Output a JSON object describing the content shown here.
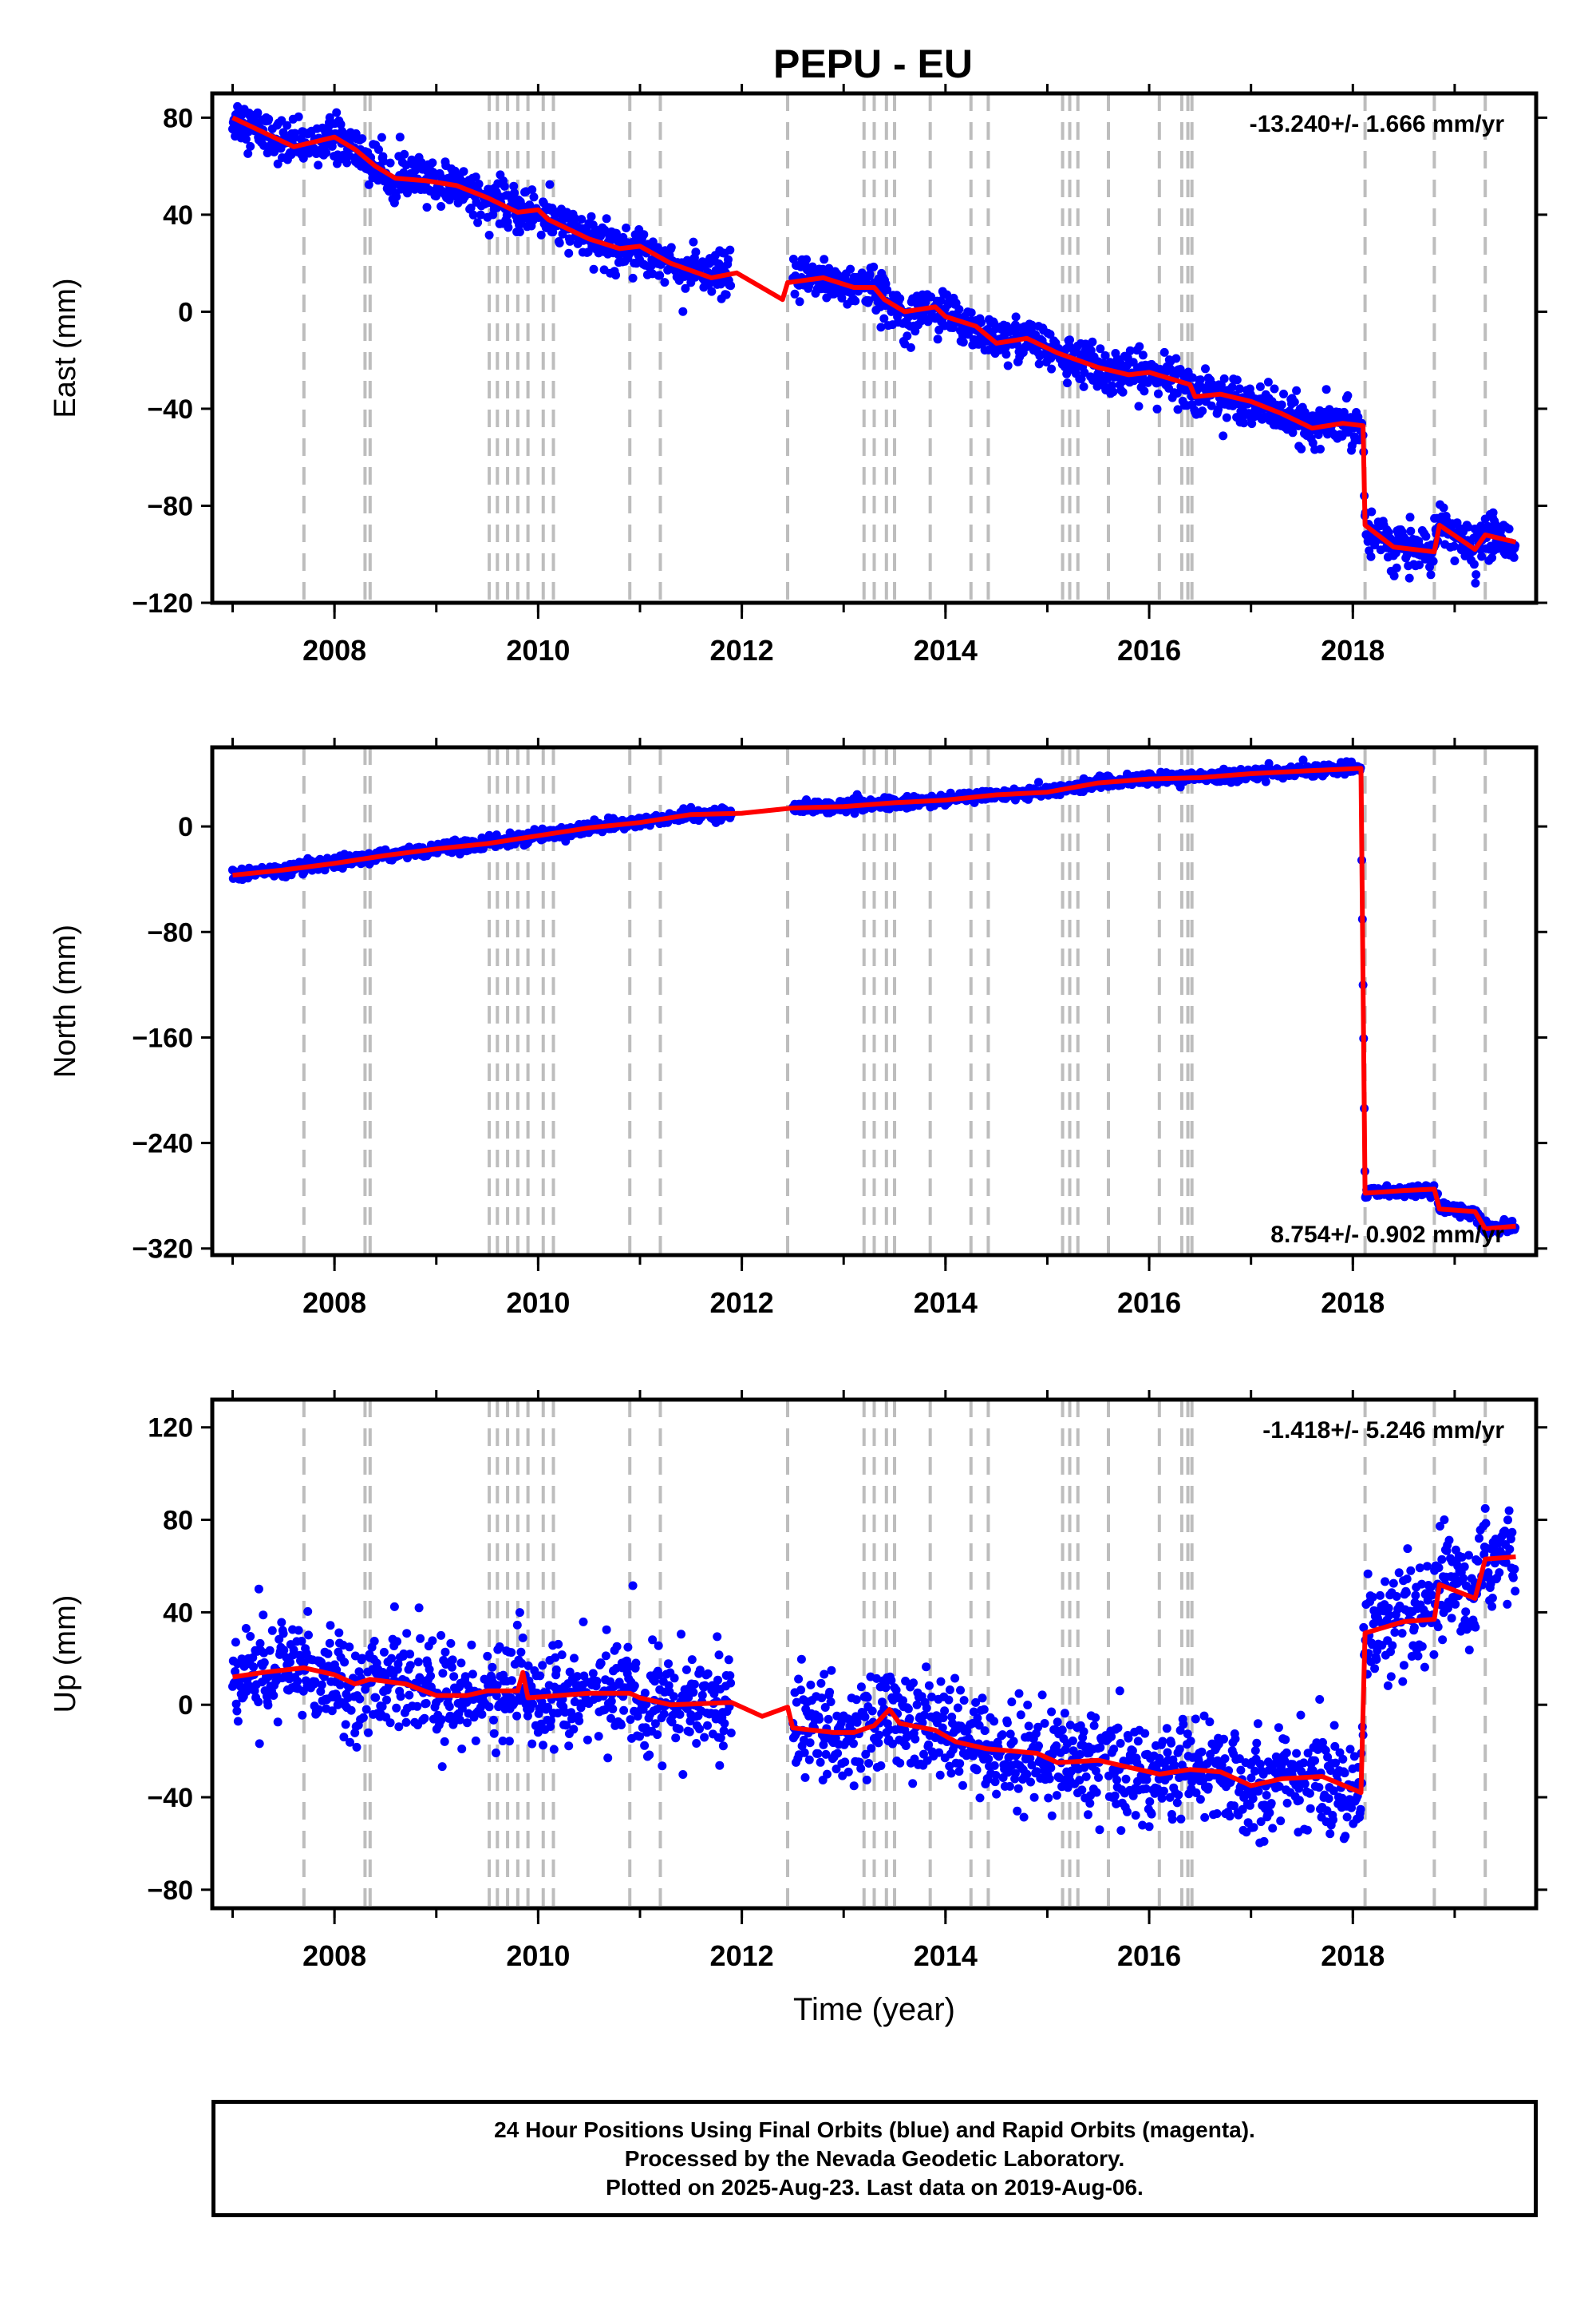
{
  "title": "PEPU - EU",
  "footer": {
    "line1": "24 Hour Positions Using Final Orbits (blue) and Rapid Orbits (magenta).",
    "line2": "Processed by the Nevada Geodetic Laboratory.",
    "line3": "Plotted on 2025-Aug-23. Last data on 2019-Aug-06."
  },
  "colors": {
    "points": "#0000ff",
    "model": "#ff0000",
    "steps": "#bdbdbd",
    "axis": "#000000"
  },
  "chart_data": [
    {
      "type": "scatter",
      "component": "east",
      "ylabel": "East (mm)",
      "xlabel": "",
      "rate_text": "-13.240+/- 1.666 mm/yr",
      "rate_position": "top-right",
      "xlim": [
        2006.8,
        2019.8
      ],
      "ylim": [
        -120,
        90
      ],
      "xticks": [
        2008,
        2010,
        2012,
        2014,
        2016,
        2018
      ],
      "yticks": [
        80,
        40,
        0,
        -40,
        -80,
        -120
      ],
      "data_gap": [
        2011.9,
        2012.5
      ],
      "noise": 4.5,
      "model": [
        [
          2007.0,
          80
        ],
        [
          2007.3,
          74
        ],
        [
          2007.6,
          68
        ],
        [
          2007.8,
          70
        ],
        [
          2008.0,
          72
        ],
        [
          2008.2,
          67
        ],
        [
          2008.4,
          60
        ],
        [
          2008.6,
          55
        ],
        [
          2008.9,
          54
        ],
        [
          2009.2,
          52
        ],
        [
          2009.5,
          47
        ],
        [
          2009.8,
          41
        ],
        [
          2010.0,
          42
        ],
        [
          2010.1,
          38
        ],
        [
          2010.5,
          30
        ],
        [
          2010.8,
          26
        ],
        [
          2011.0,
          27
        ],
        [
          2011.3,
          20
        ],
        [
          2011.7,
          14
        ],
        [
          2011.95,
          16
        ],
        [
          2012.4,
          5
        ],
        [
          2012.45,
          12
        ],
        [
          2012.8,
          14
        ],
        [
          2013.1,
          10
        ],
        [
          2013.3,
          10
        ],
        [
          2013.4,
          5
        ],
        [
          2013.6,
          0
        ],
        [
          2013.9,
          2
        ],
        [
          2014.0,
          -2
        ],
        [
          2014.3,
          -6
        ],
        [
          2014.5,
          -13
        ],
        [
          2014.8,
          -11
        ],
        [
          2015.1,
          -17
        ],
        [
          2015.5,
          -23
        ],
        [
          2015.8,
          -26
        ],
        [
          2016.0,
          -25
        ],
        [
          2016.4,
          -30
        ],
        [
          2016.45,
          -35
        ],
        [
          2016.7,
          -34
        ],
        [
          2017.0,
          -37
        ],
        [
          2017.3,
          -42
        ],
        [
          2017.6,
          -48
        ],
        [
          2017.9,
          -46
        ],
        [
          2018.1,
          -47
        ],
        [
          2018.12,
          -88
        ],
        [
          2018.4,
          -97
        ],
        [
          2018.8,
          -99
        ],
        [
          2018.85,
          -88
        ],
        [
          2019.2,
          -98
        ],
        [
          2019.3,
          -92
        ],
        [
          2019.6,
          -95
        ]
      ]
    },
    {
      "type": "scatter",
      "component": "north",
      "ylabel": "North (mm)",
      "xlabel": "",
      "rate_text": "8.754+/- 0.902 mm/yr",
      "rate_position": "bottom-right",
      "xlim": [
        2006.8,
        2019.8
      ],
      "ylim": [
        -325,
        60
      ],
      "xticks": [
        2008,
        2010,
        2012,
        2014,
        2016,
        2018
      ],
      "yticks": [
        0,
        -80,
        -160,
        -240,
        -320
      ],
      "data_gap": [
        2011.9,
        2012.5
      ],
      "noise": 2.2,
      "model": [
        [
          2007.0,
          -37
        ],
        [
          2007.5,
          -33
        ],
        [
          2008.0,
          -28
        ],
        [
          2008.5,
          -22
        ],
        [
          2009.0,
          -17
        ],
        [
          2009.5,
          -13
        ],
        [
          2010.0,
          -7
        ],
        [
          2010.5,
          -1
        ],
        [
          2011.0,
          3
        ],
        [
          2011.5,
          9
        ],
        [
          2012.0,
          10
        ],
        [
          2012.5,
          14
        ],
        [
          2013.0,
          15
        ],
        [
          2013.5,
          18
        ],
        [
          2014.0,
          20
        ],
        [
          2014.5,
          24
        ],
        [
          2015.0,
          26
        ],
        [
          2015.5,
          33
        ],
        [
          2016.0,
          36
        ],
        [
          2016.5,
          37
        ],
        [
          2017.0,
          40
        ],
        [
          2017.5,
          42
        ],
        [
          2018.08,
          44
        ],
        [
          2018.12,
          -278
        ],
        [
          2018.5,
          -276
        ],
        [
          2018.8,
          -275
        ],
        [
          2018.85,
          -290
        ],
        [
          2019.2,
          -292
        ],
        [
          2019.3,
          -305
        ],
        [
          2019.6,
          -303
        ]
      ]
    },
    {
      "type": "scatter",
      "component": "up",
      "ylabel": "Up (mm)",
      "xlabel": "Time (year)",
      "rate_text": "-1.418+/- 5.246 mm/yr",
      "rate_position": "top-right",
      "xlim": [
        2006.8,
        2019.8
      ],
      "ylim": [
        -88,
        132
      ],
      "xticks": [
        2008,
        2010,
        2012,
        2014,
        2016,
        2018
      ],
      "yticks": [
        120,
        80,
        40,
        0,
        -40,
        -80
      ],
      "data_gap": [
        2011.9,
        2012.5
      ],
      "noise": 11,
      "model": [
        [
          2007.0,
          12
        ],
        [
          2007.3,
          14
        ],
        [
          2007.7,
          16
        ],
        [
          2008.0,
          13
        ],
        [
          2008.2,
          9
        ],
        [
          2008.35,
          11
        ],
        [
          2008.7,
          9
        ],
        [
          2009.0,
          4
        ],
        [
          2009.3,
          4
        ],
        [
          2009.5,
          6
        ],
        [
          2009.8,
          6
        ],
        [
          2009.85,
          14
        ],
        [
          2009.9,
          3
        ],
        [
          2010.2,
          4
        ],
        [
          2010.5,
          5
        ],
        [
          2010.9,
          5
        ],
        [
          2011.0,
          3
        ],
        [
          2011.3,
          0
        ],
        [
          2011.9,
          1
        ],
        [
          2012.2,
          -5
        ],
        [
          2012.45,
          -1
        ],
        [
          2012.5,
          -10
        ],
        [
          2012.9,
          -12
        ],
        [
          2013.1,
          -12
        ],
        [
          2013.3,
          -9
        ],
        [
          2013.45,
          -2
        ],
        [
          2013.55,
          -8
        ],
        [
          2013.9,
          -11
        ],
        [
          2014.1,
          -16
        ],
        [
          2014.4,
          -19
        ],
        [
          2014.9,
          -21
        ],
        [
          2015.1,
          -25
        ],
        [
          2015.5,
          -24
        ],
        [
          2015.8,
          -27
        ],
        [
          2016.1,
          -30
        ],
        [
          2016.4,
          -28
        ],
        [
          2016.7,
          -29
        ],
        [
          2017.0,
          -35
        ],
        [
          2017.3,
          -32
        ],
        [
          2017.7,
          -31
        ],
        [
          2018.08,
          -38
        ],
        [
          2018.12,
          31
        ],
        [
          2018.5,
          36
        ],
        [
          2018.8,
          37
        ],
        [
          2018.85,
          52
        ],
        [
          2019.2,
          46
        ],
        [
          2019.3,
          63
        ],
        [
          2019.6,
          64
        ]
      ]
    }
  ],
  "steps": [
    2007.7,
    2008.3,
    2008.35,
    2009.52,
    2009.6,
    2009.7,
    2009.8,
    2009.9,
    2010.05,
    2010.15,
    2010.9,
    2011.2,
    2012.45,
    2013.2,
    2013.3,
    2013.42,
    2013.5,
    2013.85,
    2014.25,
    2014.42,
    2015.15,
    2015.22,
    2015.3,
    2015.6,
    2016.1,
    2016.32,
    2016.38,
    2016.42,
    2018.12,
    2018.8,
    2019.3
  ]
}
